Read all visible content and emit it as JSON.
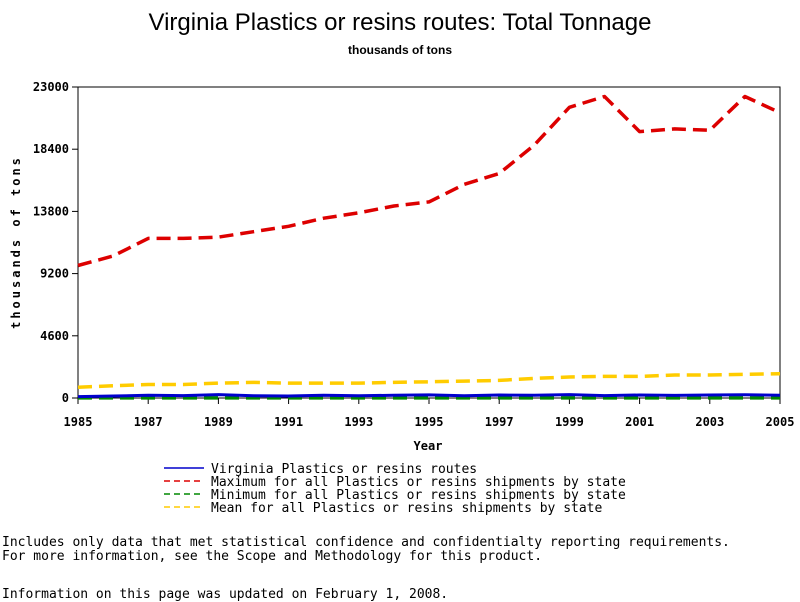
{
  "chart_data": {
    "type": "line",
    "title": "Virginia Plastics or resins routes: Total Tonnage",
    "subtitle": "thousands of tons",
    "xlabel": "Year",
    "ylabel": "thousands of tons",
    "xlim": [
      1985,
      2005
    ],
    "ylim": [
      0,
      23000
    ],
    "x_ticks": [
      "1985",
      "1987",
      "1989",
      "1991",
      "1993",
      "1995",
      "1997",
      "1999",
      "2001",
      "2003",
      "2005"
    ],
    "y_ticks": [
      "0",
      "4600",
      "9200",
      "13800",
      "18400",
      "23000"
    ],
    "x": [
      1985,
      1986,
      1987,
      1988,
      1989,
      1990,
      1991,
      1992,
      1993,
      1994,
      1995,
      1996,
      1997,
      1998,
      1999,
      2000,
      2001,
      2002,
      2003,
      2004,
      2005
    ],
    "series": [
      {
        "name": "Virginia Plastics or resins routes",
        "color": "#0000cc",
        "dash": "solid",
        "values": [
          100,
          150,
          200,
          180,
          250,
          160,
          150,
          200,
          170,
          200,
          230,
          160,
          220,
          200,
          250,
          180,
          220,
          190,
          220,
          240,
          210
        ]
      },
      {
        "name": "Maximum for all Plastics or resins shipments by state",
        "color": "#dd0000",
        "dash": "dashed",
        "values": [
          9800,
          10500,
          11800,
          11800,
          11900,
          12300,
          12700,
          13300,
          13700,
          14200,
          14500,
          15800,
          16600,
          18700,
          21500,
          22300,
          19700,
          19900,
          19800,
          22300,
          21100
        ]
      },
      {
        "name": "Minimum for all Plastics or resins shipments by state",
        "color": "#008800",
        "dash": "dashed",
        "values": [
          5,
          5,
          5,
          5,
          5,
          5,
          5,
          5,
          5,
          5,
          5,
          5,
          5,
          5,
          5,
          5,
          5,
          5,
          5,
          5,
          5
        ]
      },
      {
        "name": "Mean for all Plastics or resins shipments by state",
        "color": "#ffcc00",
        "dash": "dashed",
        "values": [
          800,
          900,
          1000,
          1000,
          1100,
          1150,
          1100,
          1100,
          1100,
          1150,
          1200,
          1250,
          1300,
          1450,
          1550,
          1600,
          1600,
          1700,
          1700,
          1750,
          1800
        ]
      }
    ],
    "legend_position": "bottom"
  },
  "footnotes": {
    "line1": "Includes only data that met statistical confidence and confidentialty reporting requirements.",
    "line2": "For more information, see the Scope and Methodology for this product.",
    "line3": "Information on this page was updated on February 1, 2008."
  }
}
